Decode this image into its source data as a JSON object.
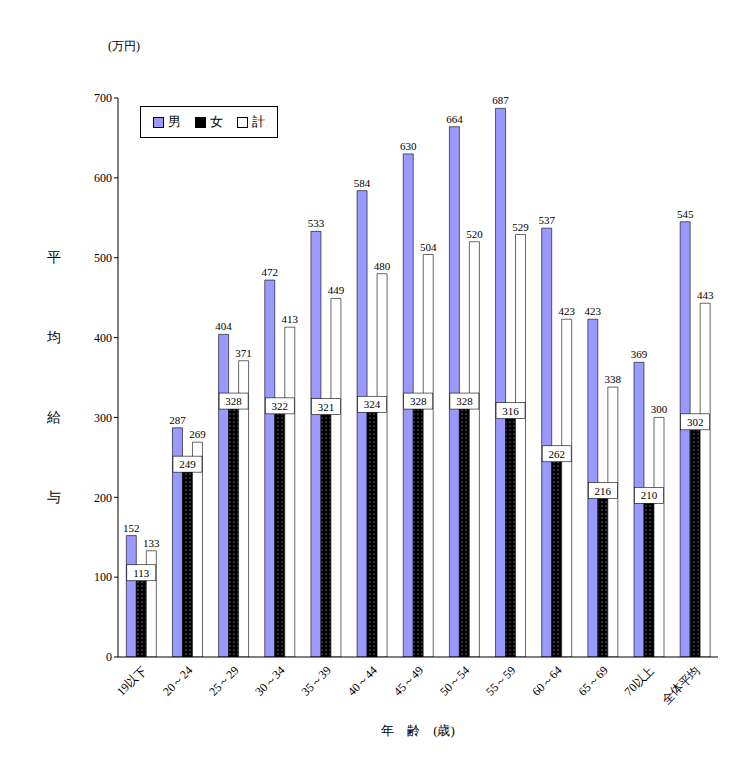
{
  "chart_data": {
    "type": "bar",
    "y_unit": "(万円)",
    "y_label": "平均給与",
    "x_label": "年　齢　(歳)",
    "categories": [
      "19以下",
      "20～24",
      "25～29",
      "30～34",
      "35～39",
      "40～44",
      "45～49",
      "50～54",
      "55～59",
      "60～64",
      "65～69",
      "70以上",
      "全体平均"
    ],
    "series": [
      {
        "name": "男",
        "color": "#9999ff",
        "values": [
          152,
          287,
          404,
          472,
          533,
          584,
          630,
          664,
          687,
          537,
          423,
          369,
          545
        ]
      },
      {
        "name": "女",
        "color": "#000000",
        "values": [
          113,
          249,
          328,
          322,
          321,
          324,
          328,
          328,
          316,
          262,
          216,
          210,
          302
        ]
      },
      {
        "name": "計",
        "color": "#ffffff",
        "values": [
          133,
          269,
          371,
          413,
          449,
          480,
          504,
          520,
          529,
          423,
          338,
          300,
          443
        ]
      }
    ],
    "ylim": [
      0,
      700
    ],
    "yticks": [
      0,
      100,
      200,
      300,
      400,
      500,
      600,
      700
    ],
    "grid": false,
    "legend": "upper left",
    "data_labels": true
  }
}
